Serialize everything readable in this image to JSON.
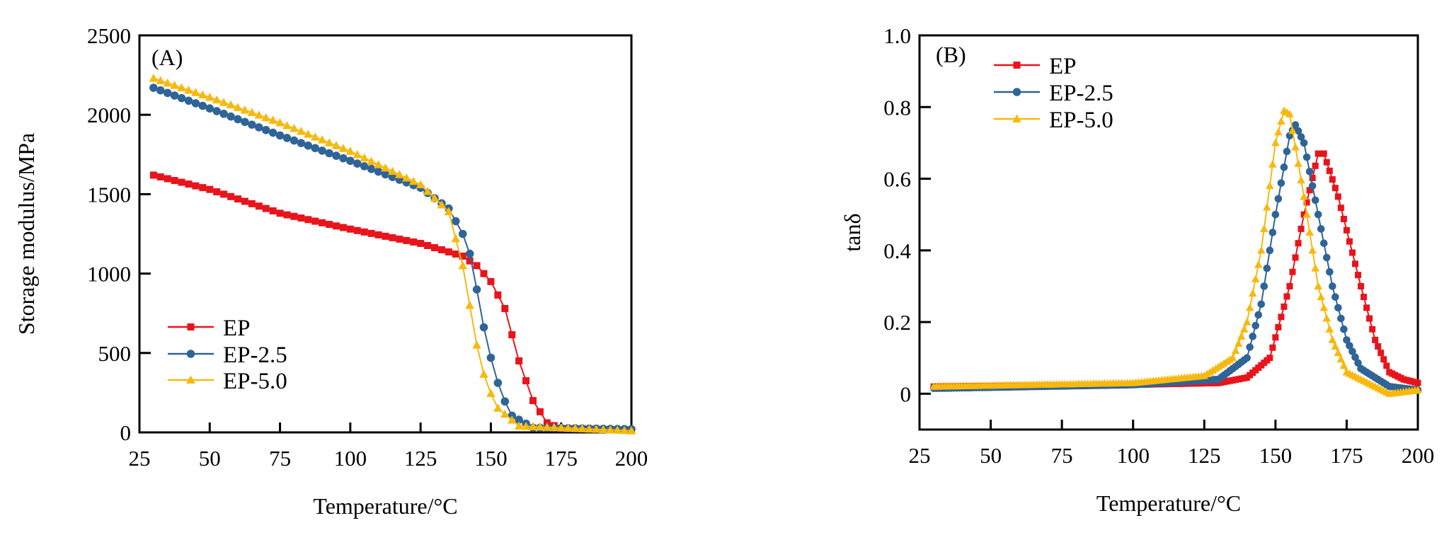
{
  "chart_data": [
    {
      "type": "line",
      "panel_label": "(A)",
      "xlabel": "Temperature/°C",
      "ylabel": "Storage modulus/MPa",
      "xlim": [
        25,
        200
      ],
      "ylim": [
        0,
        2500
      ],
      "xticks": [
        25,
        50,
        75,
        100,
        125,
        150,
        175,
        200
      ],
      "yticks": [
        0,
        500,
        1000,
        1500,
        2000,
        2500
      ],
      "legend_position": "bottom-left",
      "series": [
        {
          "name": "EP",
          "color": "#e8141c",
          "marker": "square",
          "x": [
            30,
            50,
            75,
            100,
            125,
            140,
            145,
            150,
            155,
            160,
            165,
            170,
            175,
            200
          ],
          "y": [
            1620,
            1530,
            1380,
            1280,
            1190,
            1110,
            1050,
            950,
            780,
            450,
            200,
            60,
            25,
            15
          ]
        },
        {
          "name": "EP-2.5",
          "color": "#2f6497",
          "marker": "circle",
          "x": [
            30,
            50,
            75,
            100,
            125,
            135,
            140,
            143,
            147,
            150,
            153,
            157,
            165,
            200
          ],
          "y": [
            2170,
            2040,
            1870,
            1710,
            1540,
            1410,
            1250,
            1100,
            700,
            470,
            280,
            110,
            30,
            20
          ]
        },
        {
          "name": "EP-5.0",
          "color": "#f7b90f",
          "marker": "triangle",
          "x": [
            30,
            50,
            75,
            100,
            125,
            135,
            140,
            142,
            145,
            148,
            152,
            160,
            200
          ],
          "y": [
            2230,
            2110,
            1950,
            1770,
            1560,
            1390,
            1050,
            850,
            550,
            330,
            160,
            40,
            10
          ]
        }
      ]
    },
    {
      "type": "line",
      "panel_label": "(B)",
      "xlabel": "Temperature/°C",
      "ylabel": "tanδ",
      "xlim": [
        25,
        200
      ],
      "ylim": [
        -0.1,
        1.0
      ],
      "xticks": [
        25,
        50,
        75,
        100,
        125,
        150,
        175,
        200
      ],
      "yticks": [
        "0",
        "0.2",
        "0.4",
        "0.6",
        "0.8",
        "1.0"
      ],
      "legend_position": "top-left",
      "series": [
        {
          "name": "EP",
          "color": "#e8141c",
          "marker": "square",
          "x": [
            30,
            100,
            130,
            140,
            148,
            155,
            160,
            165,
            167,
            172,
            180,
            185,
            190,
            195,
            200
          ],
          "y": [
            0.02,
            0.025,
            0.03,
            0.045,
            0.1,
            0.3,
            0.5,
            0.67,
            0.67,
            0.55,
            0.3,
            0.15,
            0.06,
            0.04,
            0.03
          ]
        },
        {
          "name": "EP-2.5",
          "color": "#2f6497",
          "marker": "circle",
          "x": [
            30,
            100,
            130,
            140,
            145,
            150,
            155,
            157,
            160,
            165,
            170,
            175,
            180,
            190,
            200
          ],
          "y": [
            0.015,
            0.025,
            0.04,
            0.1,
            0.25,
            0.5,
            0.72,
            0.75,
            0.7,
            0.5,
            0.3,
            0.15,
            0.07,
            0.02,
            0.01
          ]
        },
        {
          "name": "EP-5.0",
          "color": "#f7b90f",
          "marker": "triangle",
          "x": [
            30,
            100,
            125,
            135,
            140,
            145,
            150,
            153,
            155,
            160,
            165,
            170,
            175,
            185,
            190,
            200
          ],
          "y": [
            0.02,
            0.03,
            0.05,
            0.1,
            0.2,
            0.4,
            0.7,
            0.79,
            0.78,
            0.55,
            0.3,
            0.15,
            0.06,
            0.02,
            0.0,
            0.01
          ]
        }
      ]
    }
  ]
}
